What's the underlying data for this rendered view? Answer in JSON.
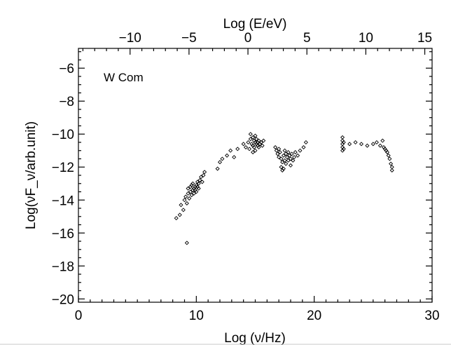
{
  "chart_data": {
    "type": "scatter",
    "annotation": "W Com",
    "xlabel": "Log (ν/Hz)",
    "ylabel": "Log(νF_ν/arb.unit)",
    "top_xlabel": "Log (E/eV)",
    "xlim": [
      0,
      30
    ],
    "ylim": [
      -20.2,
      -4.8
    ],
    "top_xlim": [
      -14.38,
      15.62
    ],
    "x_ticks": [
      "0",
      "10",
      "20",
      "30"
    ],
    "y_ticks": [
      "−20",
      "−18",
      "−16",
      "−14",
      "−12",
      "−10",
      "−8",
      "−6"
    ],
    "top_ticks": [
      "−10",
      "−5",
      "0",
      "5",
      "10",
      "15"
    ],
    "grid": false,
    "series": [
      {
        "points": [
          [
            8.3,
            -15.1
          ],
          [
            8.6,
            -14.9
          ],
          [
            8.7,
            -14.3
          ],
          [
            8.9,
            -14.6
          ],
          [
            9.0,
            -14.0
          ],
          [
            9.1,
            -13.8
          ],
          [
            9.2,
            -14.2
          ],
          [
            9.3,
            -13.6
          ],
          [
            9.3,
            -13.3
          ],
          [
            9.4,
            -13.9
          ],
          [
            9.5,
            -13.5
          ],
          [
            9.5,
            -13.2
          ],
          [
            9.6,
            -13.7
          ],
          [
            9.6,
            -13.1
          ],
          [
            9.7,
            -13.4
          ],
          [
            9.7,
            -13.0
          ],
          [
            9.8,
            -13.3
          ],
          [
            9.8,
            -13.6
          ],
          [
            9.9,
            -13.2
          ],
          [
            9.9,
            -13.4
          ],
          [
            10.0,
            -13.1
          ],
          [
            10.0,
            -13.5
          ],
          [
            10.1,
            -12.9
          ],
          [
            10.1,
            -13.2
          ],
          [
            10.2,
            -13.3
          ],
          [
            10.2,
            -13.0
          ],
          [
            10.3,
            -12.8
          ],
          [
            10.4,
            -12.6
          ],
          [
            10.5,
            -12.9
          ],
          [
            10.6,
            -12.5
          ],
          [
            10.7,
            -12.3
          ],
          [
            9.2,
            -16.6
          ],
          [
            11.8,
            -12.1
          ],
          [
            12.0,
            -11.7
          ],
          [
            12.2,
            -11.5
          ],
          [
            12.6,
            -11.3
          ],
          [
            12.9,
            -11.0
          ],
          [
            13.2,
            -11.4
          ],
          [
            13.5,
            -10.9
          ],
          [
            14.0,
            -10.6
          ],
          [
            14.2,
            -10.8
          ],
          [
            14.4,
            -10.5
          ],
          [
            14.5,
            -10.9
          ],
          [
            14.6,
            -10.3
          ],
          [
            14.6,
            -10.0
          ],
          [
            14.7,
            -10.6
          ],
          [
            14.8,
            -10.2
          ],
          [
            14.8,
            -10.7
          ],
          [
            14.9,
            -10.4
          ],
          [
            14.9,
            -10.8
          ],
          [
            15.0,
            -10.5
          ],
          [
            15.0,
            -10.1
          ],
          [
            15.1,
            -10.6
          ],
          [
            15.1,
            -10.3
          ],
          [
            15.2,
            -10.7
          ],
          [
            15.2,
            -10.5
          ],
          [
            15.3,
            -10.4
          ],
          [
            15.3,
            -10.8
          ],
          [
            15.4,
            -10.6
          ],
          [
            15.5,
            -10.5
          ],
          [
            15.6,
            -10.7
          ],
          [
            15.7,
            -10.4
          ],
          [
            14.8,
            -11.1
          ],
          [
            15.0,
            -11.0
          ],
          [
            16.7,
            -10.8
          ],
          [
            16.8,
            -11.0
          ],
          [
            16.9,
            -11.2
          ],
          [
            17.0,
            -10.9
          ],
          [
            17.0,
            -11.4
          ],
          [
            17.1,
            -11.1
          ],
          [
            17.2,
            -11.5
          ],
          [
            17.2,
            -12.0
          ],
          [
            17.3,
            -12.2
          ],
          [
            17.3,
            -11.7
          ],
          [
            17.4,
            -11.3
          ],
          [
            17.4,
            -12.1
          ],
          [
            17.5,
            -11.0
          ],
          [
            17.5,
            -11.6
          ],
          [
            17.6,
            -11.2
          ],
          [
            17.6,
            -11.8
          ],
          [
            17.7,
            -11.4
          ],
          [
            17.8,
            -11.1
          ],
          [
            17.8,
            -11.6
          ],
          [
            17.9,
            -11.3
          ],
          [
            18.0,
            -11.5
          ],
          [
            18.0,
            -11.9
          ],
          [
            18.1,
            -11.2
          ],
          [
            18.2,
            -11.6
          ],
          [
            18.3,
            -11.4
          ],
          [
            18.4,
            -11.1
          ],
          [
            18.6,
            -11.3
          ],
          [
            18.8,
            -11.0
          ],
          [
            19.1,
            -10.8
          ],
          [
            19.3,
            -10.5
          ],
          [
            22.4,
            -10.2
          ],
          [
            22.4,
            -10.4
          ],
          [
            22.4,
            -10.6
          ],
          [
            22.4,
            -10.8
          ],
          [
            22.4,
            -11.0
          ],
          [
            22.5,
            -10.5
          ],
          [
            22.5,
            -10.9
          ],
          [
            23.0,
            -10.6
          ],
          [
            23.5,
            -10.5
          ],
          [
            24.0,
            -10.6
          ],
          [
            24.5,
            -10.7
          ],
          [
            25.0,
            -10.6
          ],
          [
            25.3,
            -10.5
          ],
          [
            25.6,
            -10.7
          ],
          [
            25.8,
            -10.4
          ],
          [
            25.9,
            -10.8
          ],
          [
            26.0,
            -10.9
          ],
          [
            26.1,
            -11.0
          ],
          [
            26.2,
            -11.1
          ],
          [
            26.3,
            -11.3
          ],
          [
            26.4,
            -11.5
          ],
          [
            26.5,
            -11.8
          ],
          [
            26.6,
            -12.0
          ],
          [
            26.6,
            -12.2
          ]
        ]
      }
    ]
  }
}
